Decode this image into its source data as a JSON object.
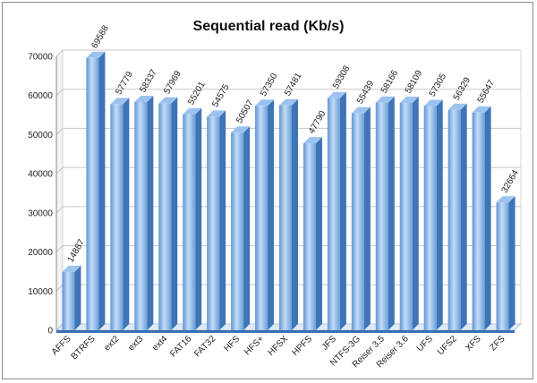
{
  "chart_data": {
    "type": "bar",
    "title": "Sequential read (Kb/s)",
    "xlabel": "",
    "ylabel": "",
    "categories": [
      "AFFS",
      "BTRFS",
      "ext2",
      "ext3",
      "ext4",
      "FAT16",
      "FAT32",
      "HFS",
      "HFS+",
      "HFSX",
      "HPFS",
      "JFS",
      "NTFS-3G",
      "Reiser 3.5",
      "Reiser 3.6",
      "UFS",
      "UFS2",
      "XFS",
      "ZFS"
    ],
    "values": [
      14887,
      69588,
      57779,
      58337,
      57969,
      55201,
      54575,
      50507,
      57350,
      57481,
      47790,
      59308,
      55439,
      58166,
      58109,
      57305,
      56329,
      55647,
      32664
    ],
    "ylim": [
      0,
      70000
    ],
    "yticks": [
      0,
      10000,
      20000,
      30000,
      40000,
      50000,
      60000,
      70000
    ],
    "grid": true,
    "legend": "none",
    "colors": {
      "bar_front_light": "#c4dcf7",
      "bar_front_dark": "#5f95d4",
      "bar_side": "#3f74b5",
      "bar_top": "#9cc3ef",
      "floor": "#3b6fb0",
      "grid": "#c8c8c8",
      "wall": "#f4f4f4"
    }
  }
}
